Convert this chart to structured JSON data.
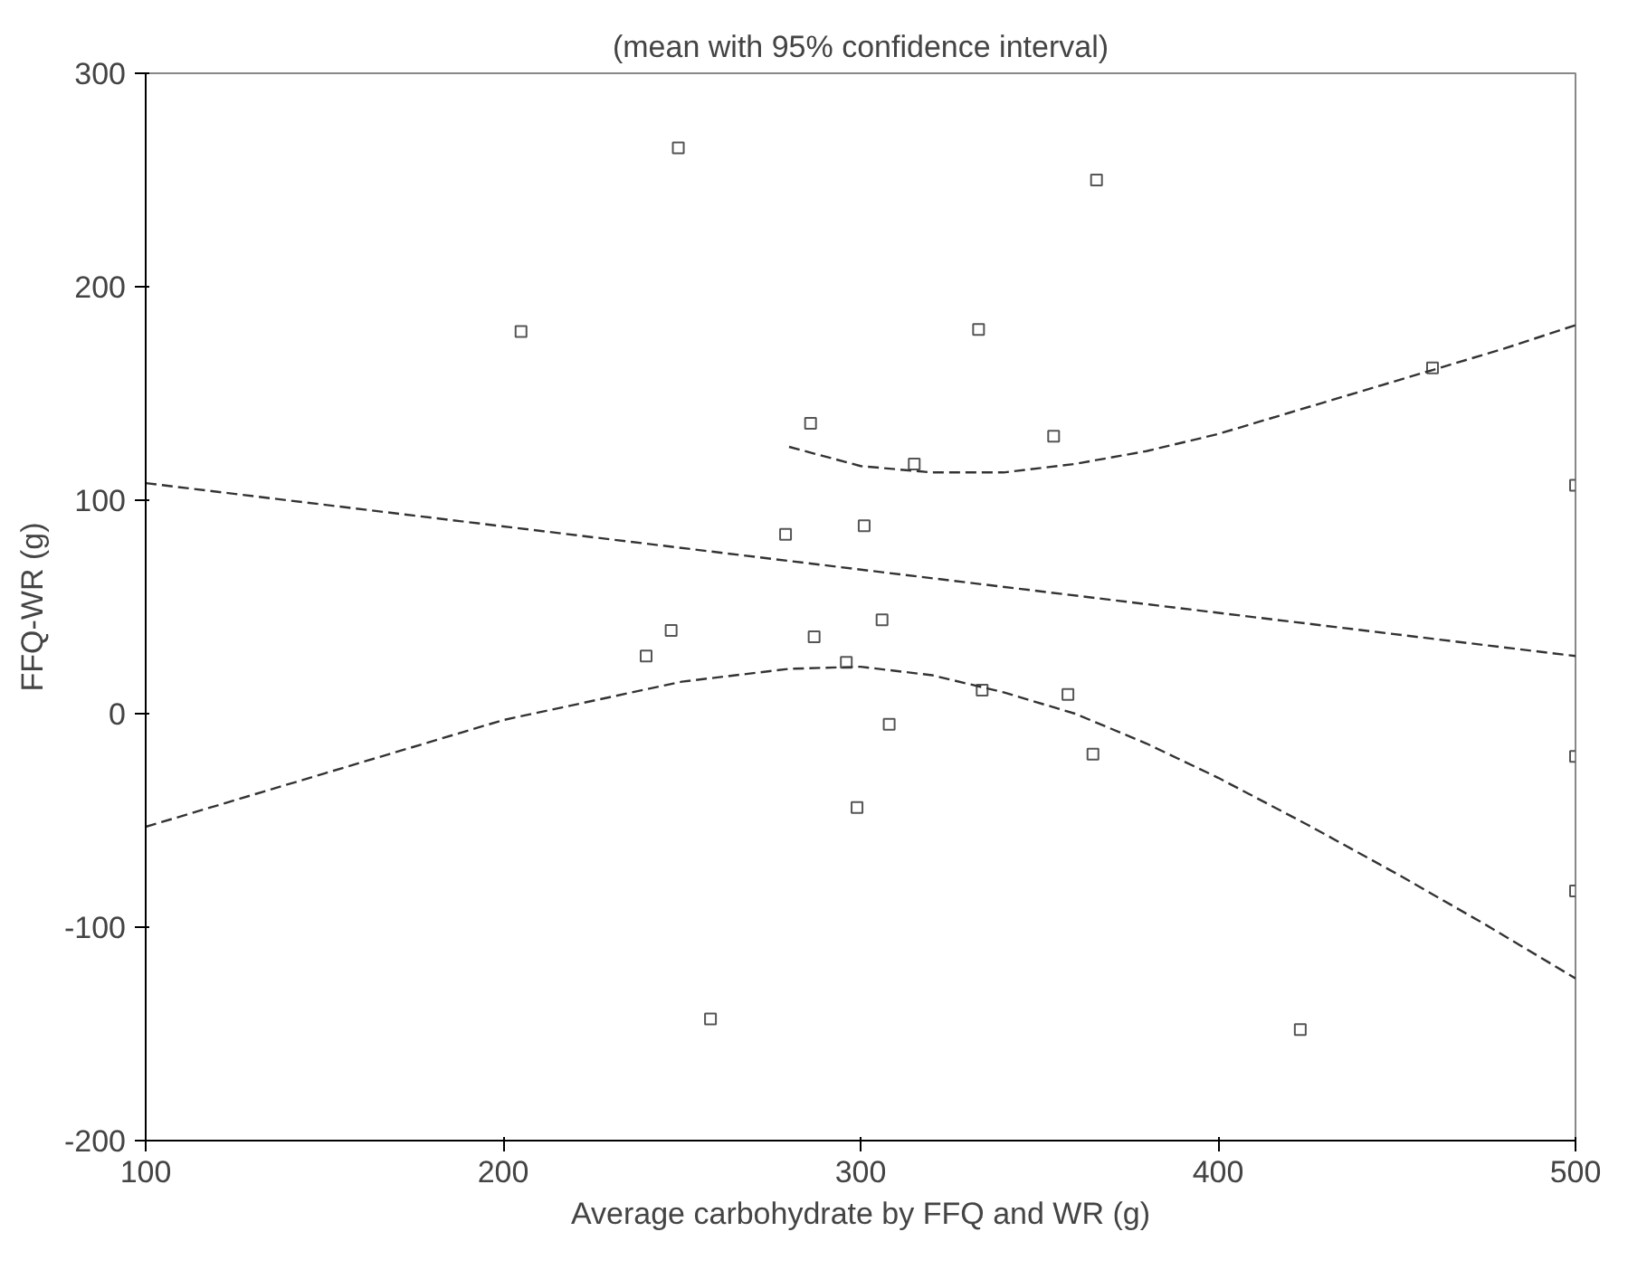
{
  "chart_data": {
    "type": "scatter",
    "title": "(mean with 95% confidence interval)",
    "xlabel": "Average carbohydrate by FFQ and WR (g)",
    "ylabel": "FFQ-WR (g)",
    "xlim": [
      100,
      500
    ],
    "ylim": [
      -200,
      300
    ],
    "xticks": [
      100,
      200,
      300,
      400,
      500
    ],
    "yticks": [
      -200,
      -100,
      0,
      100,
      200,
      300
    ],
    "grid": false,
    "series": [
      {
        "marker": "square",
        "color": "#555555",
        "x": [
          205,
          249,
          366,
          333,
          354,
          460,
          315,
          301,
          286,
          279,
          500,
          247,
          240,
          287,
          296,
          306,
          308,
          299,
          258,
          334,
          358,
          365,
          423,
          500,
          500
        ],
        "values": [
          179,
          265,
          250,
          180,
          130,
          162,
          117,
          88,
          136,
          84,
          107,
          39,
          27,
          36,
          24,
          44,
          -5,
          -44,
          -143,
          11,
          9,
          -19,
          -148,
          -20,
          -83
        ]
      },
      {
        "type": "line",
        "line_style": "dashed",
        "color": "#333333",
        "x": [
          100,
          500
        ],
        "values": [
          108,
          27
        ]
      },
      {
        "type": "line",
        "line_style": "dashed",
        "color": "#333333",
        "x": [
          280,
          300,
          320,
          340,
          360,
          380,
          400,
          420,
          440,
          460,
          480,
          500
        ],
        "values": [
          125,
          116,
          113,
          113,
          117,
          123,
          131,
          141,
          151,
          161,
          171,
          182
        ]
      },
      {
        "type": "line",
        "line_style": "dashed",
        "color": "#333333",
        "x": [
          100,
          150,
          200,
          250,
          280,
          300,
          320,
          340,
          360,
          380,
          400,
          425,
          450,
          475,
          500
        ],
        "values": [
          -53,
          -28,
          -3,
          15,
          21,
          22,
          18,
          10,
          0,
          -14,
          -30,
          -52,
          -75,
          -99,
          -124
        ]
      }
    ]
  }
}
